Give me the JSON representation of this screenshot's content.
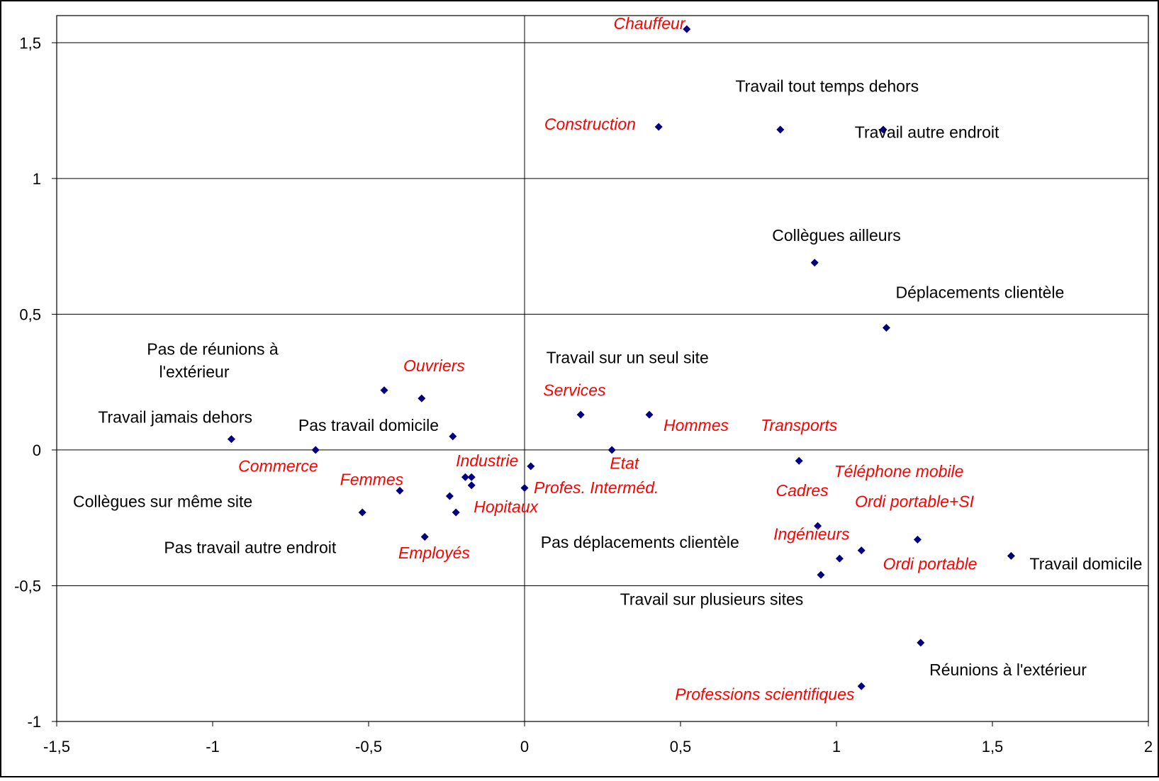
{
  "chart_data": {
    "type": "scatter",
    "title": "",
    "xlabel": "",
    "ylabel": "",
    "xlim": [
      -1.5,
      2
    ],
    "ylim": [
      -1,
      1.6
    ],
    "x_ticks": [
      {
        "value": -1.5,
        "label": "-1,5"
      },
      {
        "value": -1,
        "label": "-1"
      },
      {
        "value": -0.5,
        "label": "-0,5"
      },
      {
        "value": 0,
        "label": "0"
      },
      {
        "value": 0.5,
        "label": "0,5"
      },
      {
        "value": 1,
        "label": "1"
      },
      {
        "value": 1.5,
        "label": "1,5"
      },
      {
        "value": 2,
        "label": "2"
      }
    ],
    "y_ticks": [
      {
        "value": -1,
        "label": "-1"
      },
      {
        "value": -0.5,
        "label": "-0,5"
      },
      {
        "value": 0,
        "label": "0"
      },
      {
        "value": 0.5,
        "label": "0,5"
      },
      {
        "value": 1,
        "label": "1"
      },
      {
        "value": 1.5,
        "label": "1,5"
      }
    ],
    "horizontal_gridlines": true,
    "zero_axes": true,
    "colors": {
      "point": "#000080",
      "active_label": "#000000",
      "supplementary_label": "#ff0000",
      "grid": "#000000"
    },
    "points": [
      {
        "x": 0.52,
        "y": 1.55
      },
      {
        "x": 0.43,
        "y": 1.19
      },
      {
        "x": 0.82,
        "y": 1.18
      },
      {
        "x": 1.15,
        "y": 1.18
      },
      {
        "x": 0.93,
        "y": 0.69
      },
      {
        "x": 1.16,
        "y": 0.45
      },
      {
        "x": 0.4,
        "y": 0.13
      },
      {
        "x": 0.18,
        "y": 0.13
      },
      {
        "x": 0.28,
        "y": 0.0
      },
      {
        "x": -0.45,
        "y": 0.22
      },
      {
        "x": -0.33,
        "y": 0.19
      },
      {
        "x": -0.94,
        "y": 0.04
      },
      {
        "x": -0.67,
        "y": 0.0
      },
      {
        "x": -0.23,
        "y": 0.05
      },
      {
        "x": 0.02,
        "y": -0.06
      },
      {
        "x": -0.19,
        "y": -0.1
      },
      {
        "x": -0.17,
        "y": -0.1
      },
      {
        "x": -0.17,
        "y": -0.13
      },
      {
        "x": 0.0,
        "y": -0.14
      },
      {
        "x": -0.24,
        "y": -0.17
      },
      {
        "x": -0.4,
        "y": -0.15
      },
      {
        "x": -0.52,
        "y": -0.23
      },
      {
        "x": -0.22,
        "y": -0.23
      },
      {
        "x": -0.32,
        "y": -0.32
      },
      {
        "x": 0.88,
        "y": -0.04
      },
      {
        "x": 0.94,
        "y": -0.28
      },
      {
        "x": 1.08,
        "y": -0.37
      },
      {
        "x": 1.01,
        "y": -0.4
      },
      {
        "x": 0.95,
        "y": -0.46
      },
      {
        "x": 1.26,
        "y": -0.33
      },
      {
        "x": 1.56,
        "y": -0.39
      },
      {
        "x": 1.27,
        "y": -0.71
      },
      {
        "x": 1.08,
        "y": -0.87
      }
    ],
    "labels": [
      {
        "text": "Chauffeur",
        "kind": "supplementary",
        "x": 0.4,
        "y": 1.55
      },
      {
        "text": "Construction",
        "kind": "supplementary",
        "x": 0.21,
        "y": 1.18
      },
      {
        "text": "Travail tout temps dehors",
        "kind": "active",
        "x": 0.97,
        "y": 1.32
      },
      {
        "text": "Travail autre endroit",
        "kind": "active",
        "x": 1.29,
        "y": 1.15
      },
      {
        "text": "Collègues ailleurs",
        "kind": "active",
        "x": 1.0,
        "y": 0.77
      },
      {
        "text": "Déplacements clientèle",
        "kind": "active",
        "x": 1.46,
        "y": 0.56
      },
      {
        "text": "Pas de réunions à l'extérieur",
        "kind": "active",
        "x": -1.0,
        "y": 0.33
      },
      {
        "text": "Ouvriers",
        "kind": "supplementary",
        "x": -0.29,
        "y": 0.29
      },
      {
        "text": "Travail sur un seul site",
        "kind": "active",
        "x": 0.33,
        "y": 0.32
      },
      {
        "text": "Services",
        "kind": "supplementary",
        "x": 0.16,
        "y": 0.2
      },
      {
        "text": "Hommes",
        "kind": "supplementary",
        "x": 0.55,
        "y": 0.07
      },
      {
        "text": "Transports",
        "kind": "supplementary",
        "x": 0.88,
        "y": 0.07
      },
      {
        "text": "Travail jamais dehors",
        "kind": "active",
        "x": -1.12,
        "y": 0.1
      },
      {
        "text": "Pas travail domicile",
        "kind": "active",
        "x": -0.5,
        "y": 0.07
      },
      {
        "text": "Commerce",
        "kind": "supplementary",
        "x": -0.79,
        "y": -0.08
      },
      {
        "text": "Industrie",
        "kind": "supplementary",
        "x": -0.12,
        "y": -0.06
      },
      {
        "text": "Etat",
        "kind": "supplementary",
        "x": 0.32,
        "y": -0.07
      },
      {
        "text": "Téléphone mobile",
        "kind": "supplementary",
        "x": 1.2,
        "y": -0.1
      },
      {
        "text": "Femmes",
        "kind": "supplementary",
        "x": -0.49,
        "y": -0.13
      },
      {
        "text": "Profes. Interméd.",
        "kind": "supplementary",
        "x": 0.23,
        "y": -0.16
      },
      {
        "text": "Cadres",
        "kind": "supplementary",
        "x": 0.89,
        "y": -0.17
      },
      {
        "text": "Ordi portable+SI",
        "kind": "supplementary",
        "x": 1.25,
        "y": -0.21
      },
      {
        "text": "Collègues sur même site",
        "kind": "active",
        "x": -1.16,
        "y": -0.21
      },
      {
        "text": "Hopitaux",
        "kind": "supplementary",
        "x": -0.06,
        "y": -0.23
      },
      {
        "text": "Ingénieurs",
        "kind": "supplementary",
        "x": 0.92,
        "y": -0.33
      },
      {
        "text": "Pas déplacements clientèle",
        "kind": "active",
        "x": 0.37,
        "y": -0.36
      },
      {
        "text": "Pas travail autre endroit",
        "kind": "active",
        "x": -0.88,
        "y": -0.38
      },
      {
        "text": "Employés",
        "kind": "supplementary",
        "x": -0.29,
        "y": -0.4
      },
      {
        "text": "Ordi portable",
        "kind": "supplementary",
        "x": 1.3,
        "y": -0.44
      },
      {
        "text": "Travail domicile",
        "kind": "active",
        "x": 1.8,
        "y": -0.44
      },
      {
        "text": "Travail sur plusieurs sites",
        "kind": "active",
        "x": 0.6,
        "y": -0.57
      },
      {
        "text": "Réunions à l'extérieur",
        "kind": "active",
        "x": 1.55,
        "y": -0.83
      },
      {
        "text": "Professions scientifiques",
        "kind": "supplementary",
        "x": 0.77,
        "y": -0.92
      }
    ]
  }
}
